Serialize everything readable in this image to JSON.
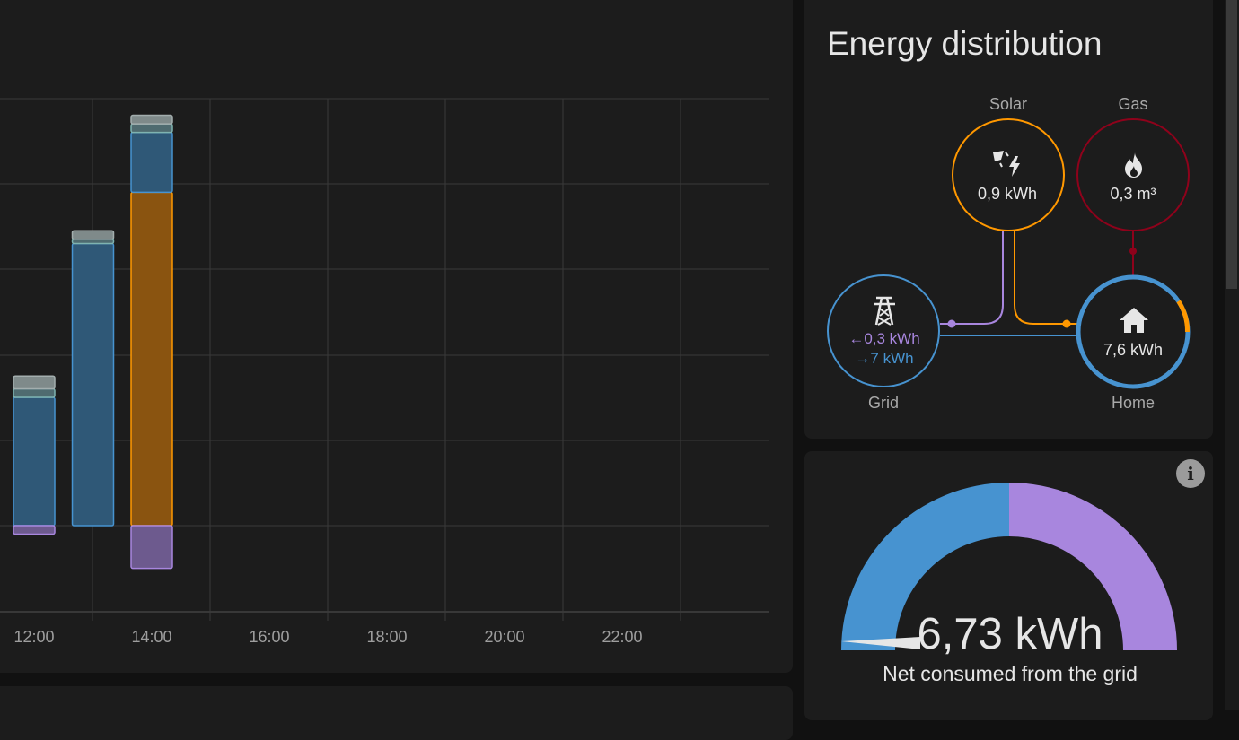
{
  "chart_data": {
    "type": "bar",
    "x_ticks": [
      "12:00",
      "14:00",
      "16:00",
      "18:00",
      "20:00",
      "22:00"
    ],
    "grid": true,
    "bar_times": [
      "12:00",
      "13:00",
      "14:00"
    ],
    "series": [
      {
        "name": "",
        "color": "#ff9800",
        "values": [
          0,
          0,
          3.9
        ]
      },
      {
        "name": "",
        "color": "#4793d0",
        "values": [
          1.5,
          3.3,
          0.7
        ]
      },
      {
        "name": "",
        "color": "#7fb3b0",
        "values": [
          0.1,
          0.05,
          0.1
        ]
      },
      {
        "name": "",
        "color": "#a3aeae",
        "values": [
          0.15,
          0.1,
          0.1
        ]
      },
      {
        "name": "",
        "color": "#a886de",
        "values": [
          -0.1,
          0,
          -0.5
        ]
      }
    ]
  },
  "energy": {
    "title": "Energy distribution",
    "solar": {
      "label": "Solar",
      "value": "0,9 kWh",
      "icon": "solar-power-icon",
      "color": "#ff9800"
    },
    "gas": {
      "label": "Gas",
      "value": "0,3 m³",
      "icon": "flame-icon",
      "color": "#8e021b"
    },
    "grid": {
      "label": "Grid",
      "return_value": "←0,3 kWh",
      "consume_value": "→7 kWh",
      "icon": "transmission-tower-icon",
      "color": "#4793d0"
    },
    "home": {
      "label": "Home",
      "value": "7,6 kWh",
      "icon": "home-icon",
      "color": "#4793d0"
    }
  },
  "gauge": {
    "value": "6,73 kWh",
    "caption": "Net consumed from the grid",
    "colors": {
      "consumed": "#4793d0",
      "returned": "#a886de"
    }
  }
}
